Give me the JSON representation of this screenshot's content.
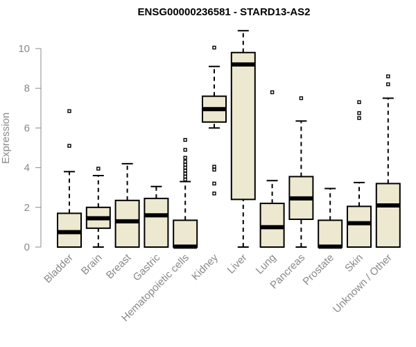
{
  "chart_data": {
    "type": "boxplot",
    "title": "ENSG00000236581 - STARD13-AS2",
    "xlabel": "",
    "ylabel": "Expression",
    "ylim": [
      0,
      10.5
    ],
    "yticks": [
      0,
      2,
      4,
      6,
      8,
      10
    ],
    "grid": false,
    "colors": {
      "box_fill": "#ede8d0",
      "stroke": "#000000",
      "axis": "#888888",
      "text": "#888888"
    },
    "categories": [
      "Bladder",
      "Brain",
      "Breast",
      "Gastric",
      "Hematopoietic cells",
      "Kidney",
      "Liver",
      "Lung",
      "Pancreas",
      "Prostate",
      "Skin",
      "Unknown / Other"
    ],
    "boxes": [
      {
        "category": "Bladder",
        "whisker_low": 0,
        "q1": 0,
        "median": 0.75,
        "q3": 1.7,
        "whisker_high": 3.8,
        "outliers": [
          5.1,
          6.85
        ]
      },
      {
        "category": "Brain",
        "whisker_low": 0,
        "q1": 0.95,
        "median": 1.45,
        "q3": 2.0,
        "whisker_high": 3.6,
        "outliers": [
          3.95
        ]
      },
      {
        "category": "Breast",
        "whisker_low": 0,
        "q1": 0,
        "median": 1.3,
        "q3": 2.35,
        "whisker_high": 4.2,
        "outliers": []
      },
      {
        "category": "Gastric",
        "whisker_low": 0,
        "q1": 0,
        "median": 1.6,
        "q3": 2.45,
        "whisker_high": 3.05,
        "outliers": []
      },
      {
        "category": "Hematopoietic cells",
        "whisker_low": 0,
        "q1": 0,
        "median": 0.02,
        "q3": 1.35,
        "whisker_high": 3.3,
        "outliers": [
          3.4,
          3.55,
          3.7,
          3.85,
          4.0,
          4.15,
          4.3,
          4.5,
          4.9,
          5.4
        ]
      },
      {
        "category": "Kidney",
        "whisker_low": 6.0,
        "q1": 6.3,
        "median": 6.95,
        "q3": 7.6,
        "whisker_high": 9.1,
        "outliers": [
          10.05,
          4.05,
          3.9,
          3.2,
          2.7
        ]
      },
      {
        "category": "Liver",
        "whisker_low": 0,
        "q1": 2.4,
        "median": 9.2,
        "q3": 9.8,
        "whisker_high": 10.9,
        "outliers": []
      },
      {
        "category": "Lung",
        "whisker_low": 0,
        "q1": 0,
        "median": 1.0,
        "q3": 2.2,
        "whisker_high": 3.35,
        "outliers": [
          7.8
        ]
      },
      {
        "category": "Pancreas",
        "whisker_low": 0,
        "q1": 1.4,
        "median": 2.45,
        "q3": 3.55,
        "whisker_high": 6.35,
        "outliers": [
          7.5
        ]
      },
      {
        "category": "Prostate",
        "whisker_low": 0,
        "q1": 0,
        "median": 0.02,
        "q3": 1.35,
        "whisker_high": 2.95,
        "outliers": []
      },
      {
        "category": "Skin",
        "whisker_low": 0,
        "q1": 0,
        "median": 1.2,
        "q3": 2.05,
        "whisker_high": 3.25,
        "outliers": [
          6.5,
          6.75,
          7.3
        ]
      },
      {
        "category": "Unknown / Other",
        "whisker_low": 0,
        "q1": 0,
        "median": 2.1,
        "q3": 3.2,
        "whisker_high": 7.5,
        "outliers": [
          8.2,
          8.6
        ]
      }
    ]
  }
}
